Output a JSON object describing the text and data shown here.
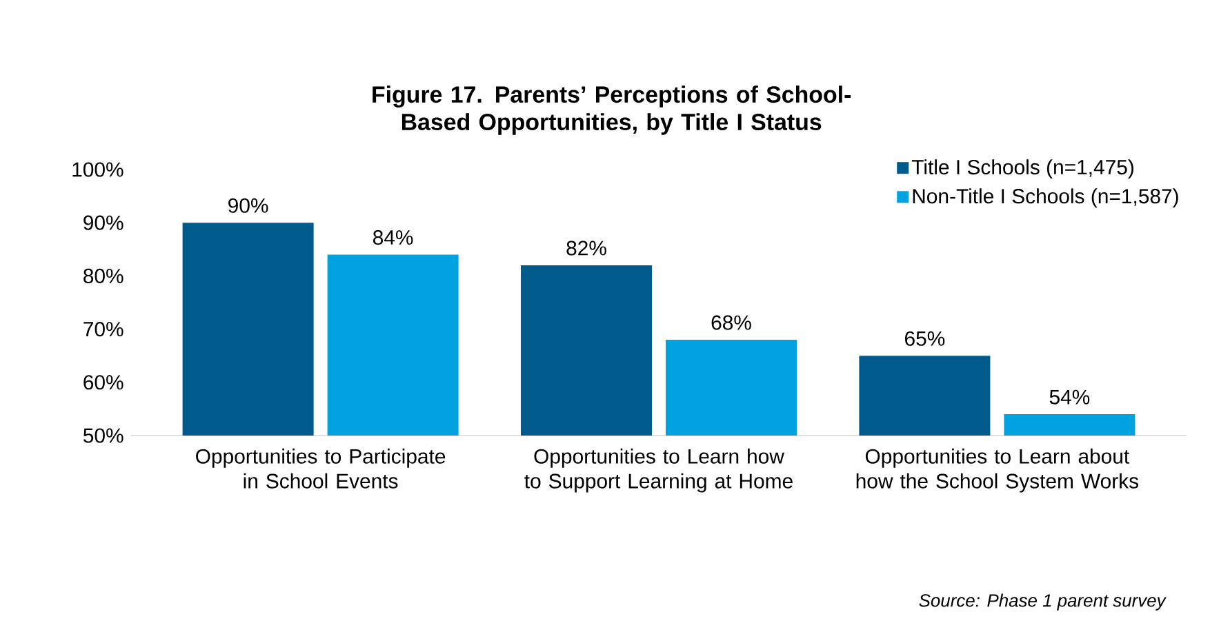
{
  "chart_data": {
    "type": "bar",
    "title": "Figure 17. Parents’ Perceptions of School-Based Opportunities, by Title I Status",
    "categories": [
      "Opportunities to Participate in School Events",
      "Opportunities to Learn how to Support Learning at Home",
      "Opportunities to Learn about how the School System Works"
    ],
    "series": [
      {
        "name": "Title I Schools (n=1,475)",
        "color": "#005a8c",
        "values": [
          90,
          82,
          65
        ],
        "value_labels": [
          "90%",
          "82%",
          "65%"
        ]
      },
      {
        "name": "Non-Title I Schools (n=1,587)",
        "color": "#00a3e0",
        "values": [
          84,
          68,
          54
        ],
        "value_labels": [
          "84%",
          "68%",
          "54%"
        ]
      }
    ],
    "ylim": [
      50,
      100
    ],
    "yticks": [
      {
        "value": 50,
        "label": "50%"
      },
      {
        "value": 60,
        "label": "60%"
      },
      {
        "value": 70,
        "label": "70%"
      },
      {
        "value": 80,
        "label": "80%"
      },
      {
        "value": 90,
        "label": "90%"
      },
      {
        "value": 100,
        "label": "100%"
      }
    ],
    "legend": "top right",
    "annotations": [
      "Source: Phase 1 parent survey"
    ]
  }
}
